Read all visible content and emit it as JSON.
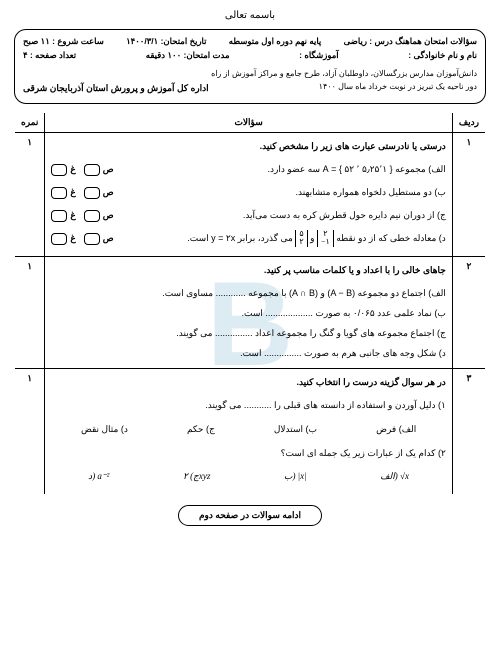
{
  "header": {
    "besmellah": "باسمه تعالی"
  },
  "info": {
    "row1": {
      "right": "سؤالات امتحان هماهنگ درس : ریاضی",
      "center": "پایه نهم دوره اول متوسطه",
      "date_label": "تاریخ امتحان: ۱۴۰۰/۳/۱",
      "time_label": "ساعت شروع : ۱۱ صبح"
    },
    "row2": {
      "right": "نام و نام خانوادگی :",
      "center": "آموزشگاه :",
      "duration": "مدت امتحان: ۱۰۰ دقیقه",
      "pages": "تعداد صفحه : ۴"
    },
    "sub": "دانش‌آموزان مدارس بزرگسالان، داوطلبان آزاد، طرح جامع و مراکز آموزش از راه دور ناحیه یک تبریز در نوبت خرداد ماه سال ۱۴۰۰",
    "dept": "اداره کل آموزش و پرورش استان آذربایجان شرقی"
  },
  "columns": {
    "num": "ردیف",
    "q": "سؤالات",
    "score": "نمره"
  },
  "q1": {
    "num": "۱",
    "score": "۱",
    "title": "درستی یا نادرستی عبارت های زیر را مشخص کنید.",
    "a": "الف) مجموعه { ۵٫۲۵٬۱ ٬ ۵۲ } = A سه عضو دارد.",
    "b": "ب) دو مستطیل دلخواه همواره متشابهند.",
    "c": "ج) از دوران نیم دایره حول قطرش کره به دست می‌آید.",
    "d_pre": "د) معادله خطی که از دو نقطه ",
    "d_post": " می گذرد، برابر y = ۲x است.",
    "true": "ص",
    "false": "غ"
  },
  "q2": {
    "num": "۲",
    "score": "۱",
    "title": "جاهای خالی را با اعداد و یا کلمات مناسب پر کنید.",
    "a": "الف) اجتماع دو مجموعه (A − B) و (A ∩ B) با مجموعه ............ مساوی است.",
    "b": "ب) نماد علمی عدد ۰/۰۶۵ به صورت ................... است.",
    "c": "ج) اجتماع مجموعه های گویا و گنگ را مجموعه اعداد ............... می گویند.",
    "d": "د) شکل وجه های جانبی هرم به صورت ............... است."
  },
  "q3": {
    "num": "۳",
    "score": "۱",
    "title": "در هر سوال گزینه درست را انتخاب کنید.",
    "s1": "۱) دلیل آوردن و استفاده از دانسته های قبلی را ........... می گویند.",
    "o1a": "الف) فرض",
    "o1b": "ب) استدلال",
    "o1c": "ج) حکم",
    "o1d": "د) مثال نقض",
    "s2": "۲) کدام یک از عبارات زیر یک جمله ای است؟",
    "o2a": "الف) √x",
    "o2b": "ب) |x|",
    "o2c": "ج) ۲xyz",
    "o2d": "د) a⁻²"
  },
  "continue": "ادامه سوالات در صفحه دوم"
}
